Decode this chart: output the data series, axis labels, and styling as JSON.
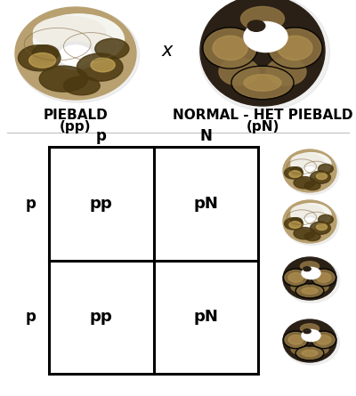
{
  "parent1_label1": "PIEBALD",
  "parent1_label2": "(pp)",
  "parent2_label1": "NORMAL - HET PIEBALD",
  "parent2_label2": "(pN)",
  "cross_symbol": "x",
  "col_headers": [
    "p",
    "N"
  ],
  "row_headers": [
    "p",
    "p"
  ],
  "cells": [
    [
      "pp",
      "pN"
    ],
    [
      "pp",
      "pN"
    ]
  ],
  "grid_color": "#000000",
  "text_color": "#000000",
  "bg_color": "#ffffff",
  "divider_color": "#c0c0c0",
  "cell_fontsize": 13,
  "header_fontsize": 12,
  "parent_label_fontsize": 11,
  "grid_linewidth": 2.2,
  "fig_width": 4.0,
  "fig_height": 4.45
}
